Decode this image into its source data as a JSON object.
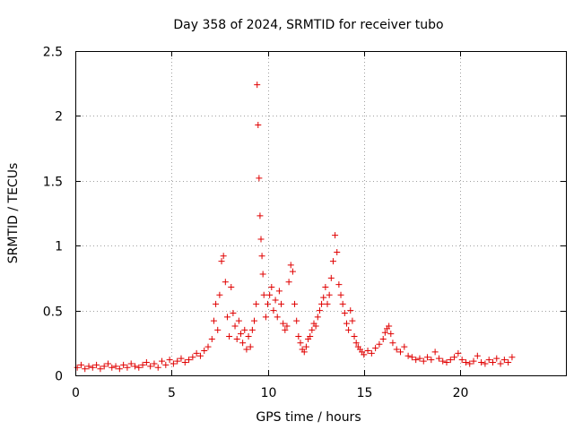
{
  "chart_data": {
    "type": "scatter",
    "title": "Day 358 of 2024, SRMTID for receiver tubo",
    "xlabel": "GPS time / hours",
    "ylabel": "SRMTID / TECUs",
    "xlim": [
      0,
      25.5
    ],
    "ylim": [
      0,
      2.5
    ],
    "xticks": [
      0,
      5,
      10,
      15,
      20
    ],
    "yticks": [
      0,
      0.5,
      1,
      1.5,
      2,
      2.5
    ],
    "xtick_labels": [
      "0",
      "5",
      "10",
      "15",
      "20"
    ],
    "ytick_labels": [
      "0",
      "0.5",
      "1",
      "1.5",
      "2",
      "2.5"
    ],
    "grid": true,
    "marker": "+",
    "color": "#e00000",
    "series": [
      {
        "name": "SRMTID",
        "points": [
          [
            0.1,
            0.06
          ],
          [
            0.3,
            0.08
          ],
          [
            0.5,
            0.05
          ],
          [
            0.7,
            0.07
          ],
          [
            0.9,
            0.06
          ],
          [
            1.1,
            0.08
          ],
          [
            1.3,
            0.05
          ],
          [
            1.5,
            0.07
          ],
          [
            1.7,
            0.09
          ],
          [
            1.9,
            0.06
          ],
          [
            2.1,
            0.07
          ],
          [
            2.3,
            0.05
          ],
          [
            2.5,
            0.08
          ],
          [
            2.7,
            0.06
          ],
          [
            2.9,
            0.09
          ],
          [
            3.1,
            0.07
          ],
          [
            3.3,
            0.06
          ],
          [
            3.5,
            0.08
          ],
          [
            3.7,
            0.1
          ],
          [
            3.9,
            0.07
          ],
          [
            4.1,
            0.09
          ],
          [
            4.3,
            0.06
          ],
          [
            4.5,
            0.11
          ],
          [
            4.7,
            0.08
          ],
          [
            4.9,
            0.12
          ],
          [
            5.1,
            0.09
          ],
          [
            5.3,
            0.11
          ],
          [
            5.5,
            0.13
          ],
          [
            5.7,
            0.1
          ],
          [
            5.9,
            0.12
          ],
          [
            6.1,
            0.14
          ],
          [
            6.3,
            0.17
          ],
          [
            6.5,
            0.15
          ],
          [
            6.7,
            0.19
          ],
          [
            6.9,
            0.22
          ],
          [
            7.1,
            0.28
          ],
          [
            7.2,
            0.42
          ],
          [
            7.3,
            0.55
          ],
          [
            7.4,
            0.35
          ],
          [
            7.5,
            0.62
          ],
          [
            7.6,
            0.88
          ],
          [
            7.7,
            0.92
          ],
          [
            7.8,
            0.72
          ],
          [
            7.9,
            0.45
          ],
          [
            8.0,
            0.3
          ],
          [
            8.1,
            0.68
          ],
          [
            8.2,
            0.48
          ],
          [
            8.3,
            0.38
          ],
          [
            8.4,
            0.28
          ],
          [
            8.5,
            0.42
          ],
          [
            8.6,
            0.32
          ],
          [
            8.7,
            0.25
          ],
          [
            8.8,
            0.35
          ],
          [
            8.9,
            0.2
          ],
          [
            9.0,
            0.3
          ],
          [
            9.1,
            0.22
          ],
          [
            9.2,
            0.35
          ],
          [
            9.3,
            0.42
          ],
          [
            9.4,
            0.55
          ],
          [
            9.45,
            2.24
          ],
          [
            9.5,
            1.93
          ],
          [
            9.55,
            1.52
          ],
          [
            9.6,
            1.23
          ],
          [
            9.65,
            1.05
          ],
          [
            9.7,
            0.92
          ],
          [
            9.75,
            0.78
          ],
          [
            9.8,
            0.62
          ],
          [
            9.9,
            0.45
          ],
          [
            10.0,
            0.55
          ],
          [
            10.1,
            0.62
          ],
          [
            10.2,
            0.68
          ],
          [
            10.3,
            0.5
          ],
          [
            10.4,
            0.58
          ],
          [
            10.5,
            0.45
          ],
          [
            10.6,
            0.65
          ],
          [
            10.7,
            0.55
          ],
          [
            10.8,
            0.4
          ],
          [
            10.9,
            0.35
          ],
          [
            11.0,
            0.38
          ],
          [
            11.1,
            0.72
          ],
          [
            11.2,
            0.85
          ],
          [
            11.3,
            0.8
          ],
          [
            11.4,
            0.55
          ],
          [
            11.5,
            0.42
          ],
          [
            11.6,
            0.3
          ],
          [
            11.7,
            0.25
          ],
          [
            11.8,
            0.2
          ],
          [
            11.9,
            0.18
          ],
          [
            12.0,
            0.22
          ],
          [
            12.1,
            0.28
          ],
          [
            12.2,
            0.3
          ],
          [
            12.3,
            0.35
          ],
          [
            12.4,
            0.4
          ],
          [
            12.5,
            0.38
          ],
          [
            12.6,
            0.45
          ],
          [
            12.7,
            0.5
          ],
          [
            12.8,
            0.55
          ],
          [
            12.9,
            0.6
          ],
          [
            13.0,
            0.68
          ],
          [
            13.1,
            0.55
          ],
          [
            13.2,
            0.62
          ],
          [
            13.3,
            0.75
          ],
          [
            13.4,
            0.88
          ],
          [
            13.5,
            1.08
          ],
          [
            13.6,
            0.95
          ],
          [
            13.7,
            0.7
          ],
          [
            13.8,
            0.62
          ],
          [
            13.9,
            0.55
          ],
          [
            14.0,
            0.48
          ],
          [
            14.1,
            0.4
          ],
          [
            14.2,
            0.35
          ],
          [
            14.3,
            0.5
          ],
          [
            14.4,
            0.42
          ],
          [
            14.5,
            0.3
          ],
          [
            14.6,
            0.25
          ],
          [
            14.7,
            0.22
          ],
          [
            14.8,
            0.2
          ],
          [
            14.9,
            0.18
          ],
          [
            15.0,
            0.16
          ],
          [
            15.2,
            0.19
          ],
          [
            15.4,
            0.17
          ],
          [
            15.6,
            0.21
          ],
          [
            15.8,
            0.24
          ],
          [
            16.0,
            0.28
          ],
          [
            16.1,
            0.33
          ],
          [
            16.2,
            0.36
          ],
          [
            16.3,
            0.38
          ],
          [
            16.4,
            0.32
          ],
          [
            16.5,
            0.25
          ],
          [
            16.7,
            0.2
          ],
          [
            16.9,
            0.18
          ],
          [
            17.1,
            0.22
          ],
          [
            17.3,
            0.15
          ],
          [
            17.5,
            0.14
          ],
          [
            17.7,
            0.12
          ],
          [
            17.9,
            0.13
          ],
          [
            18.1,
            0.11
          ],
          [
            18.3,
            0.14
          ],
          [
            18.5,
            0.12
          ],
          [
            18.7,
            0.18
          ],
          [
            18.9,
            0.13
          ],
          [
            19.1,
            0.11
          ],
          [
            19.3,
            0.1
          ],
          [
            19.5,
            0.12
          ],
          [
            19.7,
            0.14
          ],
          [
            19.9,
            0.17
          ],
          [
            20.1,
            0.12
          ],
          [
            20.3,
            0.1
          ],
          [
            20.5,
            0.09
          ],
          [
            20.7,
            0.11
          ],
          [
            20.9,
            0.15
          ],
          [
            21.1,
            0.1
          ],
          [
            21.3,
            0.09
          ],
          [
            21.5,
            0.12
          ],
          [
            21.7,
            0.1
          ],
          [
            21.9,
            0.13
          ],
          [
            22.1,
            0.09
          ],
          [
            22.3,
            0.12
          ],
          [
            22.5,
            0.1
          ],
          [
            22.7,
            0.14
          ]
        ]
      }
    ]
  }
}
